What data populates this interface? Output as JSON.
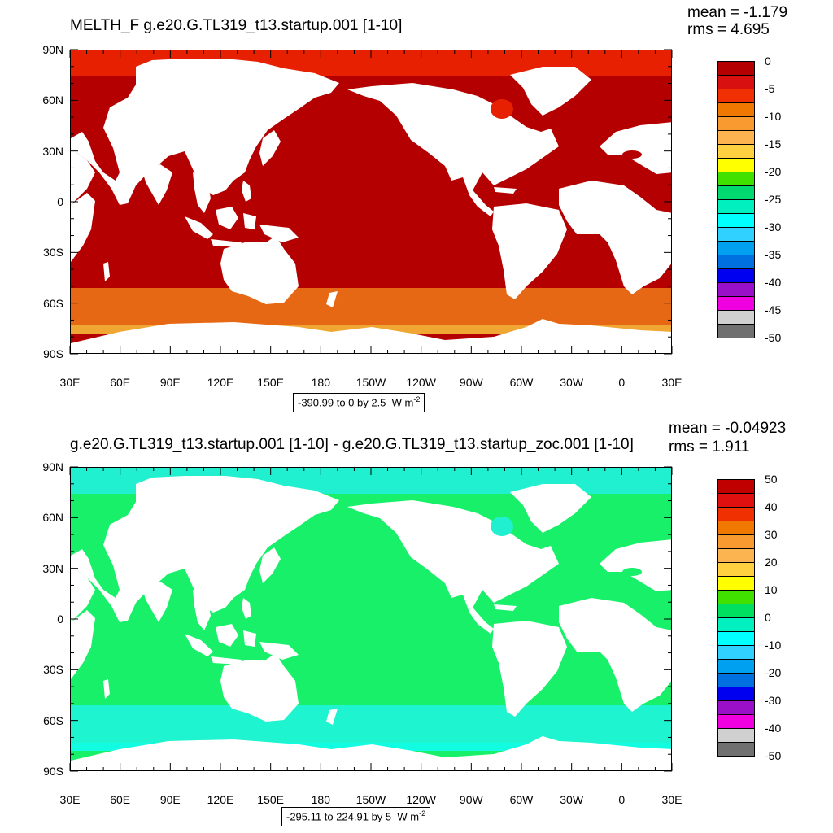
{
  "panels": [
    {
      "title": "MELTH_F g.e20.G.TL319_t13.startup.001 [1-10]",
      "stats": {
        "mean": "mean = -1.179",
        "rms": "rms = 4.695"
      },
      "range_text": "-390.99 to 0 by 2.5",
      "units": "W m",
      "units_exp": "-2",
      "ocean_color": "#b40000",
      "arctic_color": "#e62000",
      "southern_ring_color": "#f07a18",
      "antarctic_edge_color": "#ffd040",
      "colorbar_labels": [
        "0",
        "-5",
        "-10",
        "-15",
        "-20",
        "-25",
        "-30",
        "-35",
        "-40",
        "-45",
        "-50"
      ],
      "colorbar_colors": [
        "#b40000",
        "#d81010",
        "#f03000",
        "#f07800",
        "#f89a30",
        "#fbb450",
        "#ffd040",
        "#ffff00",
        "#40e000",
        "#00d870",
        "#00f0c0",
        "#00ffff",
        "#30d0ff",
        "#00a0f0",
        "#0070e0",
        "#0000f0",
        "#9a10c8",
        "#f000e0",
        "#d0d0d0",
        "#707070"
      ]
    },
    {
      "title": "g.e20.G.TL319_t13.startup.001 [1-10] - g.e20.G.TL319_t13.startup_zoc.001 [1-10]",
      "stats": {
        "mean": "mean = -0.04923",
        "rms": "rms = 1.911"
      },
      "range_text": "-295.11 to 224.91 by 5",
      "units": "W m",
      "units_exp": "-2",
      "ocean_color": "#19f06a",
      "arctic_color": "#20f0d0",
      "southern_ring_color": "#20f4e0",
      "antarctic_edge_color": "#10ffff",
      "colorbar_labels": [
        "50",
        "40",
        "30",
        "20",
        "10",
        "0",
        "-10",
        "-20",
        "-30",
        "-40",
        "-50"
      ],
      "colorbar_colors": [
        "#c00000",
        "#e01010",
        "#f03000",
        "#f07800",
        "#f89a30",
        "#fbb450",
        "#ffd040",
        "#ffff00",
        "#40e000",
        "#00e060",
        "#00f0c0",
        "#00ffff",
        "#30d0ff",
        "#00a0f0",
        "#0070e0",
        "#0000f0",
        "#9a10c8",
        "#f000e0",
        "#d0d0d0",
        "#707070"
      ]
    }
  ],
  "axes": {
    "lat_labels": [
      "90N",
      "60N",
      "30N",
      "0",
      "30S",
      "60S",
      "90S"
    ],
    "lon_labels": [
      "30E",
      "60E",
      "90E",
      "120E",
      "150E",
      "180",
      "150W",
      "120W",
      "90W",
      "60W",
      "30W",
      "0",
      "30E"
    ]
  },
  "land_color": "#ffffff"
}
